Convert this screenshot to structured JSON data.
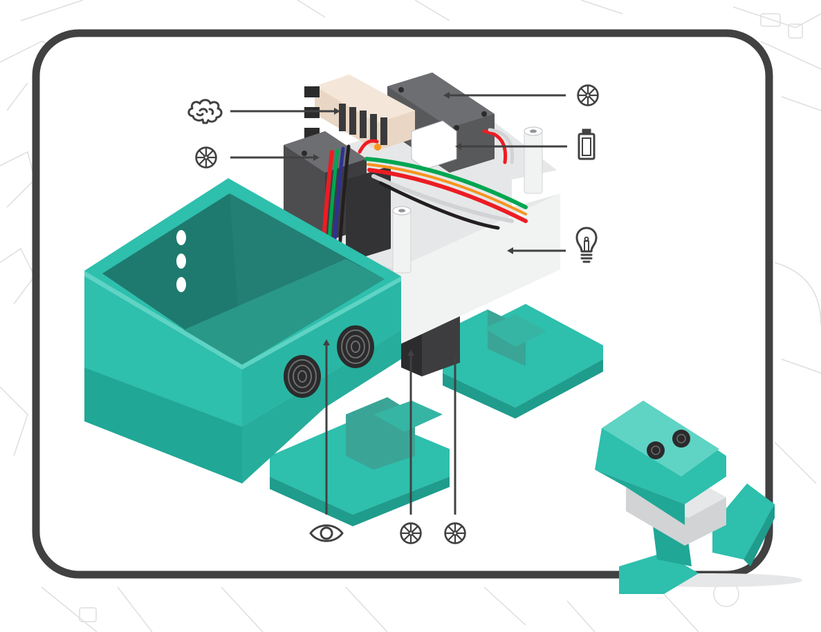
{
  "colors": {
    "frame": "#414142",
    "teal": "#2ebfad",
    "teal_dark": "#1f9c8c",
    "teal_inner": "#3aa596",
    "white_shell": "#f1f2f2",
    "servo": "#4d4d4f",
    "sketch_lines": "#dedede"
  },
  "callouts": {
    "brain": {
      "icon": "brain-icon"
    },
    "servo_top_right": {
      "icon": "servo-wheel-icon"
    },
    "battery": {
      "icon": "battery-icon"
    },
    "servo_left": {
      "icon": "servo-wheel-icon"
    },
    "light": {
      "icon": "lightbulb-icon"
    },
    "eye": {
      "icon": "eye-icon"
    },
    "servo_bottom_1": {
      "icon": "servo-wheel-icon"
    },
    "servo_bottom_2": {
      "icon": "servo-wheel-icon"
    }
  }
}
